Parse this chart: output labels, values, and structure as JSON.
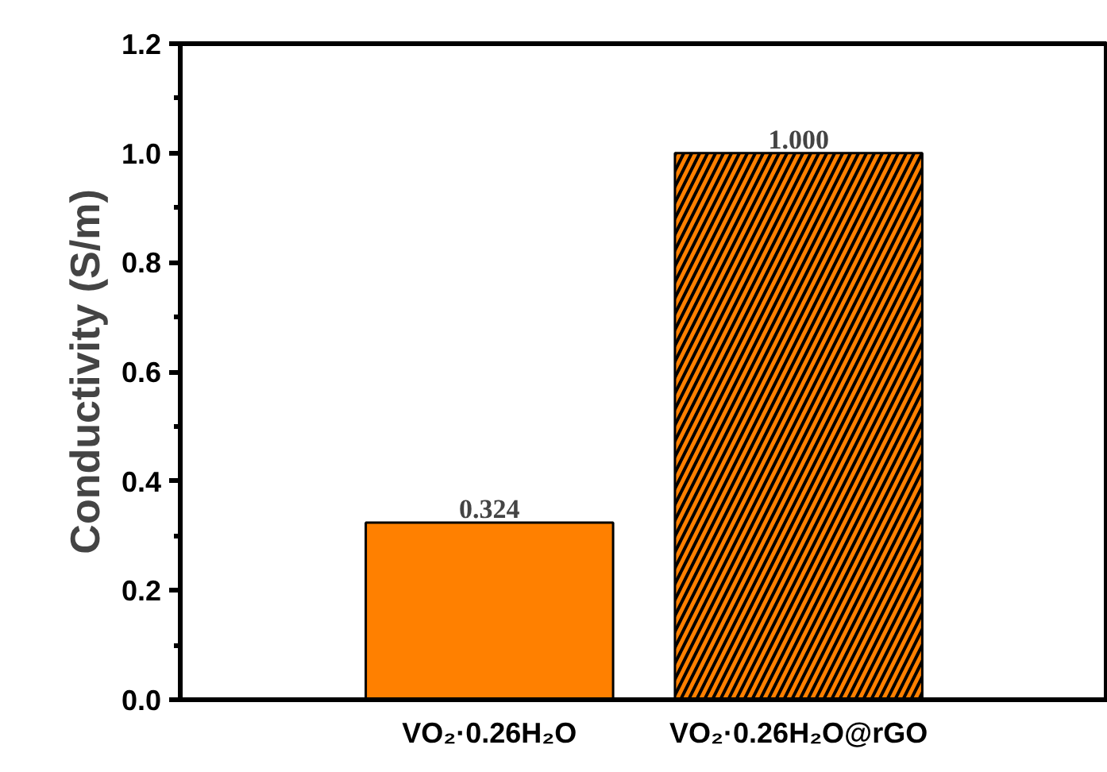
{
  "chart_data": {
    "type": "bar",
    "ylabel": "Conductivity (S/m)",
    "categories": [
      "VO₂·0.26H₂O",
      "VO₂·0.26H₂O@rGO"
    ],
    "values": [
      0.324,
      1.0
    ],
    "colors": [
      "#ff8000",
      "#ff8000"
    ],
    "value_labels": [
      "0.324",
      "1.000"
    ],
    "ylim": [
      0,
      1.2
    ],
    "yticks": [
      {
        "value": 0,
        "label": "0.0"
      },
      {
        "value": 0.2,
        "label": "0.2"
      },
      {
        "value": 0.4,
        "label": "0.4"
      },
      {
        "value": 0.6,
        "label": "0.6"
      },
      {
        "value": 0.8,
        "label": "0.8"
      },
      {
        "value": 1.0,
        "label": "1.0"
      },
      {
        "value": 1.2,
        "label": "1.2"
      }
    ],
    "grid": false
  }
}
